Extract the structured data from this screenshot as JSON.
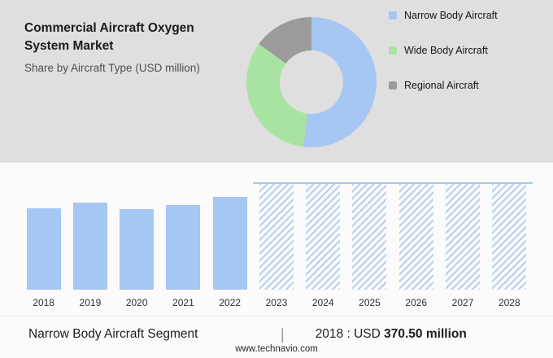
{
  "header": {
    "title": "Commercial Aircraft Oxygen System Market",
    "subtitle": "Share by Aircraft Type (USD million)"
  },
  "legend": [
    {
      "label": "Narrow Body Aircraft",
      "color": "#a6c6f4"
    },
    {
      "label": "Wide Body Aircraft",
      "color": "#a9e3a2"
    },
    {
      "label": "Regional Aircraft",
      "color": "#9b9b9b"
    }
  ],
  "chart_data": [
    {
      "type": "pie",
      "title": "Share by Aircraft Type (USD million)",
      "labels": [
        "Narrow Body Aircraft",
        "Wide Body Aircraft",
        "Regional Aircraft"
      ],
      "values": [
        52,
        33,
        15
      ],
      "unit": "percent (estimated from donut arc angles)",
      "colors": [
        "#a6c6f4",
        "#a9e3a2",
        "#9b9b9b"
      ],
      "donut": true,
      "legend_position": "right"
    },
    {
      "type": "bar",
      "categories": [
        "2018",
        "2019",
        "2020",
        "2021",
        "2022",
        "2023",
        "2024",
        "2025",
        "2026",
        "2027",
        "2028"
      ],
      "values": [
        370.5,
        395,
        365,
        385,
        420,
        null,
        null,
        null,
        null,
        null,
        null
      ],
      "forecast_categories": [
        "2023",
        "2024",
        "2025",
        "2026",
        "2027",
        "2028"
      ],
      "forecast_style": "hatched placeholder, full height (values not disclosed)",
      "ylabel": "USD million",
      "ylim": [
        0,
        480
      ],
      "bar_color": "#a6c6f4",
      "hatch_color": "#b9d0f2",
      "grid": false
    }
  ],
  "summary": {
    "segment_label": "Narrow Body Aircraft Segment",
    "pipe": "|",
    "value_prefix": "2018 : USD",
    "value": "370.50",
    "value_suffix": "million"
  },
  "footer": {
    "url": "www.technavio.com"
  }
}
